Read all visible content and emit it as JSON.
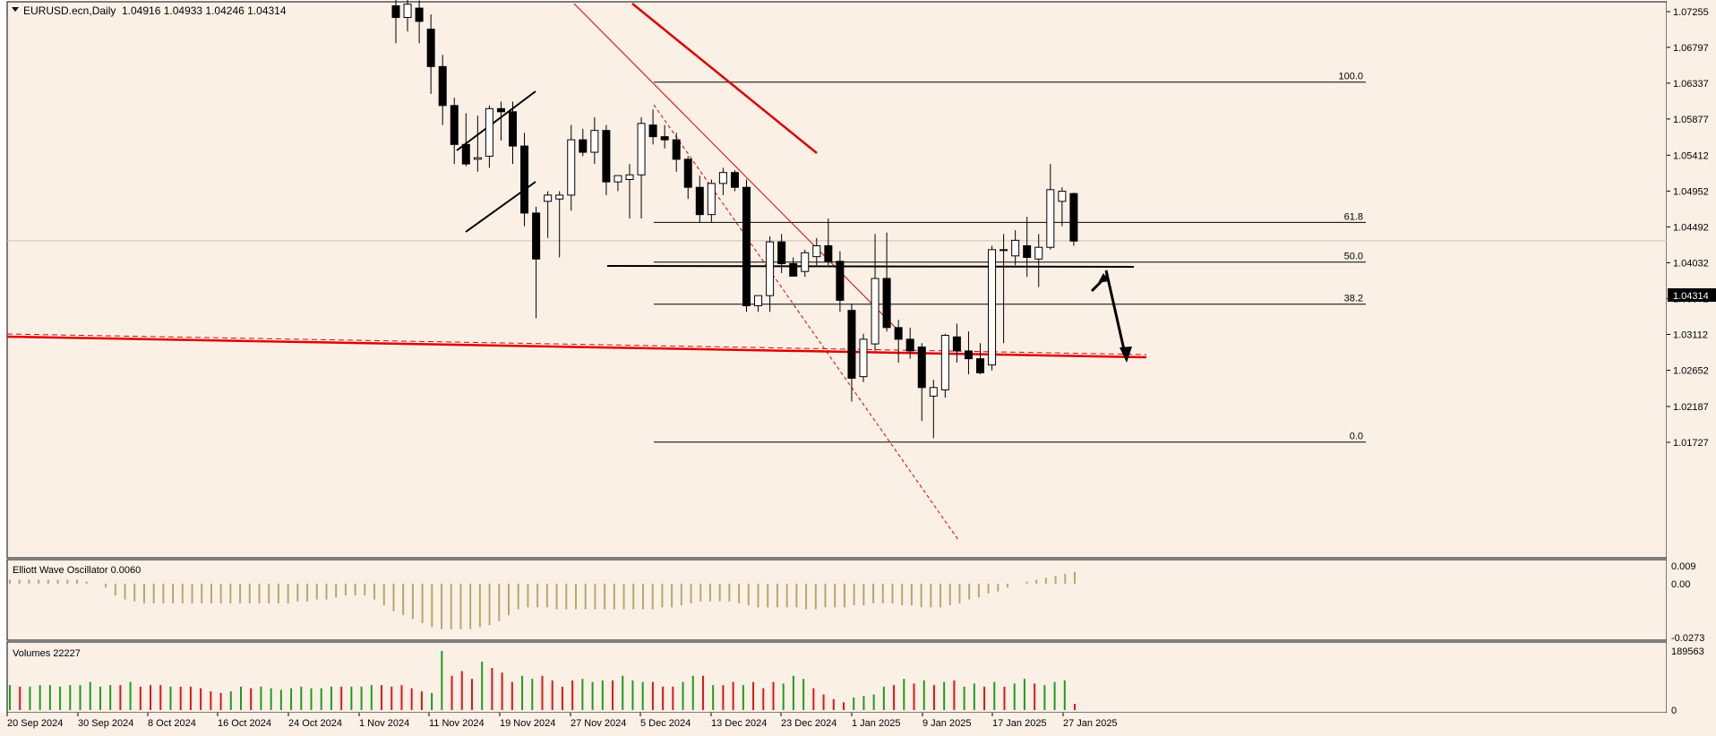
{
  "chart_data": {
    "type": "candlestick",
    "symbol": "EURUSD.ecn,Daily",
    "ohlc_readout": "1.04916 1.04933 1.04246 1.04314",
    "current_price_label": "1.04314",
    "y_ticks": [
      "1.07255",
      "1.06797",
      "1.06337",
      "1.05877",
      "1.05412",
      "1.04952",
      "1.04492",
      "1.04032",
      "1.03572",
      "1.03112",
      "1.02652",
      "1.02187",
      "1.01727"
    ],
    "x_ticks": [
      "20 Sep 2024",
      "30 Sep 2024",
      "8 Oct 2024",
      "16 Oct 2024",
      "24 Oct 2024",
      "1 Nov 2024",
      "11 Nov 2024",
      "19 Nov 2024",
      "27 Nov 2024",
      "5 Dec 2024",
      "13 Dec 2024",
      "23 Dec 2024",
      "1 Jan 2025",
      "9 Jan 2025",
      "17 Jan 2025",
      "27 Jan 2025"
    ],
    "fib_levels": [
      {
        "label": "100.0",
        "price": 1.0635
      },
      {
        "label": "61.8",
        "price": 1.0455
      },
      {
        "label": "50.0",
        "price": 1.0404
      },
      {
        "label": "38.2",
        "price": 1.035
      },
      {
        "label": "0.0",
        "price": 1.0173
      }
    ],
    "candles": [
      {
        "o": 1.0733,
        "h": 1.0755,
        "l": 1.0685,
        "c": 1.0718
      },
      {
        "o": 1.0718,
        "h": 1.0745,
        "l": 1.07,
        "c": 1.0735
      },
      {
        "o": 1.073,
        "h": 1.074,
        "l": 1.0685,
        "c": 1.0713
      },
      {
        "o": 1.0703,
        "h": 1.0722,
        "l": 1.062,
        "c": 1.0655
      },
      {
        "o": 1.0655,
        "h": 1.067,
        "l": 1.058,
        "c": 1.0605
      },
      {
        "o": 1.0605,
        "h": 1.0615,
        "l": 1.053,
        "c": 1.0555
      },
      {
        "o": 1.0555,
        "h": 1.0595,
        "l": 1.0527,
        "c": 1.053
      },
      {
        "o": 1.0536,
        "h": 1.0592,
        "l": 1.052,
        "c": 1.0538
      },
      {
        "o": 1.054,
        "h": 1.0605,
        "l": 1.0525,
        "c": 1.0601
      },
      {
        "o": 1.0601,
        "h": 1.061,
        "l": 1.056,
        "c": 1.0597
      },
      {
        "o": 1.0597,
        "h": 1.061,
        "l": 1.053,
        "c": 1.0553
      },
      {
        "o": 1.0553,
        "h": 1.057,
        "l": 1.045,
        "c": 1.0467
      },
      {
        "o": 1.0467,
        "h": 1.0475,
        "l": 1.0332,
        "c": 1.0408
      },
      {
        "o": 1.0482,
        "h": 1.0495,
        "l": 1.0435,
        "c": 1.049
      },
      {
        "o": 1.0485,
        "h": 1.0495,
        "l": 1.041,
        "c": 1.049
      },
      {
        "o": 1.049,
        "h": 1.058,
        "l": 1.047,
        "c": 1.0561
      },
      {
        "o": 1.0561,
        "h": 1.0575,
        "l": 1.054,
        "c": 1.0545
      },
      {
        "o": 1.0545,
        "h": 1.059,
        "l": 1.053,
        "c": 1.0573
      },
      {
        "o": 1.0573,
        "h": 1.058,
        "l": 1.049,
        "c": 1.0507
      },
      {
        "o": 1.0507,
        "h": 1.0515,
        "l": 1.0495,
        "c": 1.0515
      },
      {
        "o": 1.051,
        "h": 1.053,
        "l": 1.046,
        "c": 1.0516
      },
      {
        "o": 1.0516,
        "h": 1.059,
        "l": 1.046,
        "c": 1.0582
      },
      {
        "o": 1.058,
        "h": 1.06,
        "l": 1.0555,
        "c": 1.0565
      },
      {
        "o": 1.0565,
        "h": 1.058,
        "l": 1.055,
        "c": 1.0561
      },
      {
        "o": 1.0561,
        "h": 1.057,
        "l": 1.052,
        "c": 1.0536
      },
      {
        "o": 1.0536,
        "h": 1.054,
        "l": 1.0485,
        "c": 1.05
      },
      {
        "o": 1.05,
        "h": 1.0515,
        "l": 1.0455,
        "c": 1.0465
      },
      {
        "o": 1.0465,
        "h": 1.051,
        "l": 1.0455,
        "c": 1.0505
      },
      {
        "o": 1.0505,
        "h": 1.0525,
        "l": 1.049,
        "c": 1.0519
      },
      {
        "o": 1.0519,
        "h": 1.0522,
        "l": 1.0495,
        "c": 1.05
      },
      {
        "o": 1.05,
        "h": 1.051,
        "l": 1.034,
        "c": 1.0348
      },
      {
        "o": 1.0348,
        "h": 1.036,
        "l": 1.034,
        "c": 1.0361
      },
      {
        "o": 1.0361,
        "h": 1.0437,
        "l": 1.034,
        "c": 1.043
      },
      {
        "o": 1.043,
        "h": 1.044,
        "l": 1.039,
        "c": 1.0402
      },
      {
        "o": 1.0402,
        "h": 1.041,
        "l": 1.039,
        "c": 1.0386
      },
      {
        "o": 1.0392,
        "h": 1.042,
        "l": 1.0385,
        "c": 1.0416
      },
      {
        "o": 1.0411,
        "h": 1.0435,
        "l": 1.04,
        "c": 1.0425
      },
      {
        "o": 1.0425,
        "h": 1.046,
        "l": 1.04,
        "c": 1.0405
      },
      {
        "o": 1.0405,
        "h": 1.0418,
        "l": 1.034,
        "c": 1.0355
      },
      {
        "o": 1.0342,
        "h": 1.035,
        "l": 1.0225,
        "c": 1.0255
      },
      {
        "o": 1.0257,
        "h": 1.0312,
        "l": 1.025,
        "c": 1.0305
      },
      {
        "o": 1.0299,
        "h": 1.044,
        "l": 1.029,
        "c": 1.0383
      },
      {
        "o": 1.0383,
        "h": 1.0442,
        "l": 1.0315,
        "c": 1.032
      },
      {
        "o": 1.032,
        "h": 1.033,
        "l": 1.0275,
        "c": 1.0305
      },
      {
        "o": 1.0305,
        "h": 1.032,
        "l": 1.028,
        "c": 1.029
      },
      {
        "o": 1.0295,
        "h": 1.03,
        "l": 1.02,
        "c": 1.0243
      },
      {
        "o": 1.0232,
        "h": 1.0253,
        "l": 1.0178,
        "c": 1.0243
      },
      {
        "o": 1.024,
        "h": 1.0312,
        "l": 1.023,
        "c": 1.031
      },
      {
        "o": 1.0308,
        "h": 1.0325,
        "l": 1.0275,
        "c": 1.029
      },
      {
        "o": 1.029,
        "h": 1.0315,
        "l": 1.026,
        "c": 1.028
      },
      {
        "o": 1.028,
        "h": 1.03,
        "l": 1.026,
        "c": 1.0262
      },
      {
        "o": 1.0272,
        "h": 1.0425,
        "l": 1.0265,
        "c": 1.042
      },
      {
        "o": 1.042,
        "h": 1.044,
        "l": 1.03,
        "c": 1.042
      },
      {
        "o": 1.0412,
        "h": 1.0445,
        "l": 1.04,
        "c": 1.0432
      },
      {
        "o": 1.0425,
        "h": 1.0462,
        "l": 1.0385,
        "c": 1.041
      },
      {
        "o": 1.0408,
        "h": 1.044,
        "l": 1.0372,
        "c": 1.0423
      },
      {
        "o": 1.0423,
        "h": 1.053,
        "l": 1.042,
        "c": 1.0497
      },
      {
        "o": 1.0482,
        "h": 1.05,
        "l": 1.045,
        "c": 1.0495
      },
      {
        "o": 1.0492,
        "h": 1.0493,
        "l": 1.0425,
        "c": 1.0431
      }
    ],
    "oscillator": {
      "label": "Elliott Wave Oscillator 0.0060",
      "y_ticks": [
        "0.009",
        "0.00",
        "-0.0273"
      ],
      "values": [
        0.002,
        0.002,
        0.002,
        0.002,
        0.002,
        0.002,
        0.002,
        0.002,
        0.001,
        0.0,
        -0.002,
        -0.006,
        -0.008,
        -0.009,
        -0.01,
        -0.01,
        -0.01,
        -0.01,
        -0.01,
        -0.01,
        -0.01,
        -0.01,
        -0.01,
        -0.01,
        -0.01,
        -0.01,
        -0.01,
        -0.01,
        -0.01,
        -0.01,
        -0.009,
        -0.009,
        -0.008,
        -0.008,
        -0.007,
        -0.006,
        -0.006,
        -0.006,
        -0.008,
        -0.011,
        -0.014,
        -0.016,
        -0.018,
        -0.02,
        -0.022,
        -0.023,
        -0.023,
        -0.023,
        -0.023,
        -0.022,
        -0.021,
        -0.019,
        -0.016,
        -0.013,
        -0.012,
        -0.012,
        -0.012,
        -0.013,
        -0.013,
        -0.013,
        -0.013,
        -0.013,
        -0.013,
        -0.013,
        -0.013,
        -0.013,
        -0.013,
        -0.013,
        -0.012,
        -0.012,
        -0.011,
        -0.01,
        -0.009,
        -0.009,
        -0.009,
        -0.009,
        -0.01,
        -0.011,
        -0.012,
        -0.012,
        -0.012,
        -0.012,
        -0.012,
        -0.013,
        -0.013,
        -0.012,
        -0.012,
        -0.012,
        -0.011,
        -0.011,
        -0.01,
        -0.01,
        -0.01,
        -0.011,
        -0.011,
        -0.012,
        -0.012,
        -0.012,
        -0.011,
        -0.01,
        -0.008,
        -0.007,
        -0.005,
        -0.004,
        -0.002,
        0.0,
        0.001,
        0.002,
        0.003,
        0.004,
        0.005,
        0.006
      ],
      "color": "#b5a86a"
    },
    "volumes": {
      "label": "Volumes 22227",
      "y_ticks": [
        "189563",
        "0"
      ],
      "max": 189563,
      "values": [
        {
          "v": 80000,
          "c": "g"
        },
        {
          "v": 75000,
          "c": "r"
        },
        {
          "v": 75000,
          "c": "g"
        },
        {
          "v": 80000,
          "c": "g"
        },
        {
          "v": 80000,
          "c": "g"
        },
        {
          "v": 75000,
          "c": "g"
        },
        {
          "v": 80000,
          "c": "g"
        },
        {
          "v": 80000,
          "c": "g"
        },
        {
          "v": 90000,
          "c": "g"
        },
        {
          "v": 75000,
          "c": "g"
        },
        {
          "v": 80000,
          "c": "g"
        },
        {
          "v": 80000,
          "c": "r"
        },
        {
          "v": 90000,
          "c": "g"
        },
        {
          "v": 75000,
          "c": "r"
        },
        {
          "v": 80000,
          "c": "r"
        },
        {
          "v": 80000,
          "c": "r"
        },
        {
          "v": 75000,
          "c": "g"
        },
        {
          "v": 75000,
          "c": "r"
        },
        {
          "v": 75000,
          "c": "r"
        },
        {
          "v": 70000,
          "c": "r"
        },
        {
          "v": 60000,
          "c": "r"
        },
        {
          "v": 55000,
          "c": "r"
        },
        {
          "v": 60000,
          "c": "g"
        },
        {
          "v": 75000,
          "c": "g"
        },
        {
          "v": 70000,
          "c": "r"
        },
        {
          "v": 75000,
          "c": "g"
        },
        {
          "v": 70000,
          "c": "g"
        },
        {
          "v": 65000,
          "c": "g"
        },
        {
          "v": 70000,
          "c": "g"
        },
        {
          "v": 75000,
          "c": "g"
        },
        {
          "v": 70000,
          "c": "g"
        },
        {
          "v": 70000,
          "c": "g"
        },
        {
          "v": 75000,
          "c": "g"
        },
        {
          "v": 75000,
          "c": "r"
        },
        {
          "v": 75000,
          "c": "g"
        },
        {
          "v": 75000,
          "c": "g"
        },
        {
          "v": 80000,
          "c": "g"
        },
        {
          "v": 80000,
          "c": "r"
        },
        {
          "v": 75000,
          "c": "r"
        },
        {
          "v": 80000,
          "c": "r"
        },
        {
          "v": 70000,
          "c": "r"
        },
        {
          "v": 60000,
          "c": "r"
        },
        {
          "v": 55000,
          "c": "g"
        },
        {
          "v": 189563,
          "c": "g"
        },
        {
          "v": 110000,
          "c": "r"
        },
        {
          "v": 125000,
          "c": "r"
        },
        {
          "v": 100000,
          "c": "r"
        },
        {
          "v": 155000,
          "c": "g"
        },
        {
          "v": 135000,
          "c": "r"
        },
        {
          "v": 120000,
          "c": "r"
        },
        {
          "v": 90000,
          "c": "r"
        },
        {
          "v": 110000,
          "c": "g"
        },
        {
          "v": 100000,
          "c": "g"
        },
        {
          "v": 110000,
          "c": "r"
        },
        {
          "v": 95000,
          "c": "r"
        },
        {
          "v": 75000,
          "c": "r"
        },
        {
          "v": 95000,
          "c": "r"
        },
        {
          "v": 100000,
          "c": "g"
        },
        {
          "v": 90000,
          "c": "g"
        },
        {
          "v": 95000,
          "c": "g"
        },
        {
          "v": 95000,
          "c": "r"
        },
        {
          "v": 110000,
          "c": "g"
        },
        {
          "v": 95000,
          "c": "g"
        },
        {
          "v": 90000,
          "c": "g"
        },
        {
          "v": 90000,
          "c": "r"
        },
        {
          "v": 75000,
          "c": "r"
        },
        {
          "v": 75000,
          "c": "r"
        },
        {
          "v": 90000,
          "c": "g"
        },
        {
          "v": 110000,
          "c": "g"
        },
        {
          "v": 110000,
          "c": "r"
        },
        {
          "v": 80000,
          "c": "g"
        },
        {
          "v": 80000,
          "c": "r"
        },
        {
          "v": 90000,
          "c": "r"
        },
        {
          "v": 80000,
          "c": "g"
        },
        {
          "v": 90000,
          "c": "r"
        },
        {
          "v": 70000,
          "c": "r"
        },
        {
          "v": 90000,
          "c": "r"
        },
        {
          "v": 85000,
          "c": "g"
        },
        {
          "v": 110000,
          "c": "g"
        },
        {
          "v": 100000,
          "c": "g"
        },
        {
          "v": 70000,
          "c": "r"
        },
        {
          "v": 50000,
          "c": "r"
        },
        {
          "v": 35000,
          "c": "r"
        },
        {
          "v": 25000,
          "c": "r"
        },
        {
          "v": 40000,
          "c": "g"
        },
        {
          "v": 45000,
          "c": "g"
        },
        {
          "v": 50000,
          "c": "g"
        },
        {
          "v": 75000,
          "c": "g"
        },
        {
          "v": 80000,
          "c": "r"
        },
        {
          "v": 100000,
          "c": "g"
        },
        {
          "v": 85000,
          "c": "r"
        },
        {
          "v": 95000,
          "c": "g"
        },
        {
          "v": 80000,
          "c": "r"
        },
        {
          "v": 90000,
          "c": "g"
        },
        {
          "v": 95000,
          "c": "r"
        },
        {
          "v": 75000,
          "c": "g"
        },
        {
          "v": 85000,
          "c": "g"
        },
        {
          "v": 75000,
          "c": "r"
        },
        {
          "v": 90000,
          "c": "g"
        },
        {
          "v": 75000,
          "c": "r"
        },
        {
          "v": 85000,
          "c": "g"
        },
        {
          "v": 100000,
          "c": "g"
        },
        {
          "v": 85000,
          "c": "r"
        },
        {
          "v": 80000,
          "c": "g"
        },
        {
          "v": 90000,
          "c": "g"
        },
        {
          "v": 95000,
          "c": "g"
        },
        {
          "v": 20000,
          "c": "r"
        }
      ]
    }
  },
  "colors": {
    "background": "#fbf0e6",
    "axis_text": "#000000",
    "trendline_red": "#e00000",
    "volume_up": "#1a9e1a",
    "volume_down": "#e01515"
  }
}
